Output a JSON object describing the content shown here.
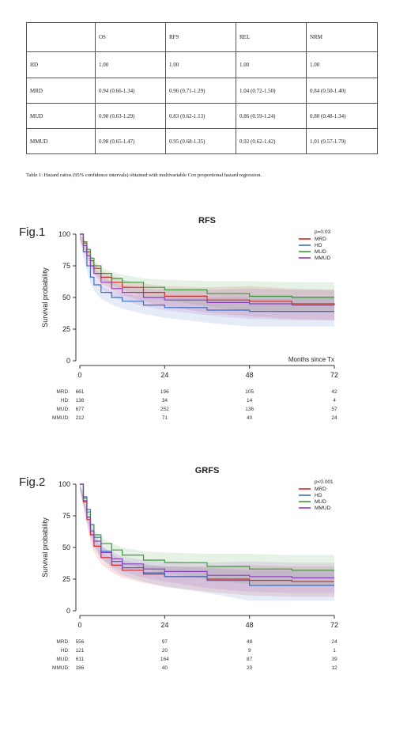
{
  "table": {
    "header": [
      "",
      "OS",
      "RFS",
      "REL",
      "NRM"
    ],
    "rows": [
      [
        "HD",
        "1.00",
        "1.00",
        "1.00",
        "1.00"
      ],
      [
        "MRD",
        "0.94 (0.66-1.34)",
        "0.96 (0.71-1.29)",
        "1.04 (0.72-1.50)",
        "0.84 (0.50-1.40)"
      ],
      [
        "MUD",
        "0.90 (0.63-1.29)",
        "0.83 (0.62-1.13)",
        "0.86 (0.59-1.24)",
        "0.80 (0.48-1.34)"
      ],
      [
        "MMUD",
        "0.98 (0.65-1.47)",
        "0.95 (0.68-1.35)",
        "0.92 (0.62-1.42)",
        "1.01 (0.57-1.79)"
      ]
    ],
    "caption": "Table 1: Hazard ratios (95% confidence intervals) obtained with multivariable Cox proportional hazard regression."
  },
  "colors": {
    "MRD": "#d62728",
    "HD": "#3a6fc4",
    "MUD": "#3a9a3a",
    "MMUD": "#8a3fbf"
  },
  "chart_data": [
    {
      "type": "line",
      "fig_label": "Fig.1",
      "title": "RFS",
      "ylabel": "Survival probability",
      "xlabel": "Months since Tx",
      "xlim": [
        0,
        72
      ],
      "ylim": [
        0,
        100
      ],
      "xticks": [
        "0",
        "24",
        "48",
        "72"
      ],
      "yticks": [
        "0",
        "25",
        "50",
        "75",
        "100"
      ],
      "pvalue": "p=0.03",
      "legend": [
        "MRD",
        "HD",
        "MUD",
        "MMUD"
      ],
      "series": [
        {
          "name": "MRD",
          "x": [
            0,
            1,
            2,
            3,
            4,
            6,
            9,
            12,
            18,
            24,
            36,
            48,
            60,
            72
          ],
          "y": [
            100,
            93,
            86,
            79,
            73,
            66,
            62,
            58,
            54,
            51,
            48,
            47,
            45,
            44
          ]
        },
        {
          "name": "HD",
          "x": [
            0,
            1,
            2,
            3,
            4,
            6,
            9,
            12,
            18,
            24,
            36,
            48,
            60,
            72
          ],
          "y": [
            100,
            86,
            75,
            66,
            60,
            54,
            50,
            47,
            44,
            42,
            40,
            39,
            39,
            39
          ]
        },
        {
          "name": "MUD",
          "x": [
            0,
            1,
            2,
            3,
            4,
            6,
            9,
            12,
            18,
            24,
            36,
            48,
            60,
            72
          ],
          "y": [
            100,
            94,
            88,
            81,
            75,
            69,
            65,
            62,
            58,
            56,
            53,
            51,
            50,
            50
          ]
        },
        {
          "name": "MMUD",
          "x": [
            0,
            1,
            2,
            3,
            4,
            6,
            9,
            12,
            18,
            24,
            36,
            48,
            60,
            72
          ],
          "y": [
            100,
            91,
            83,
            75,
            69,
            62,
            57,
            54,
            50,
            48,
            46,
            45,
            44,
            44
          ]
        }
      ],
      "risk_table": {
        "times": [
          0,
          24,
          48,
          72
        ],
        "rows": [
          {
            "label": "MRD:",
            "values": [
              "661",
              "196",
              "105",
              "42"
            ]
          },
          {
            "label": "HD:",
            "values": [
              "136",
              "34",
              "14",
              "4"
            ]
          },
          {
            "label": "MUD:",
            "values": [
              "677",
              "252",
              "136",
              "57"
            ]
          },
          {
            "label": "MMUD:",
            "values": [
              "212",
              "71",
              "40",
              "24"
            ]
          }
        ]
      }
    },
    {
      "type": "line",
      "fig_label": "Fig.2",
      "title": "GRFS",
      "ylabel": "Survival probability",
      "xlabel": "",
      "xlim": [
        0,
        72
      ],
      "ylim": [
        0,
        100
      ],
      "xticks": [
        "0",
        "24",
        "48",
        "72"
      ],
      "yticks": [
        "0",
        "25",
        "50",
        "75",
        "100"
      ],
      "pvalue": "p<0.001",
      "legend": [
        "MRD",
        "HD",
        "MUD",
        "MMUD"
      ],
      "series": [
        {
          "name": "MRD",
          "x": [
            0,
            1,
            2,
            3,
            4,
            6,
            9,
            12,
            18,
            24,
            36,
            48,
            60,
            72
          ],
          "y": [
            100,
            86,
            72,
            60,
            51,
            42,
            36,
            32,
            29,
            27,
            25,
            24,
            23,
            23
          ]
        },
        {
          "name": "HD",
          "x": [
            0,
            1,
            2,
            3,
            4,
            6,
            9,
            12,
            18,
            24,
            36,
            48,
            60,
            72
          ],
          "y": [
            100,
            90,
            80,
            68,
            58,
            47,
            39,
            34,
            30,
            27,
            24,
            20,
            20,
            20
          ]
        },
        {
          "name": "MUD",
          "x": [
            0,
            1,
            2,
            3,
            4,
            6,
            9,
            12,
            18,
            24,
            36,
            48,
            60,
            72
          ],
          "y": [
            100,
            89,
            78,
            68,
            60,
            53,
            48,
            44,
            40,
            38,
            35,
            33,
            32,
            32
          ]
        },
        {
          "name": "MMUD",
          "x": [
            0,
            1,
            2,
            3,
            4,
            6,
            9,
            12,
            18,
            24,
            36,
            48,
            60,
            72
          ],
          "y": [
            100,
            87,
            74,
            63,
            55,
            46,
            41,
            37,
            33,
            31,
            28,
            27,
            26,
            26
          ]
        }
      ],
      "risk_table": {
        "times": [
          0,
          24,
          48,
          72
        ],
        "rows": [
          {
            "label": "MRD:",
            "values": [
              "556",
              "97",
              "48",
              "24"
            ]
          },
          {
            "label": "HD:",
            "values": [
              "121",
              "20",
              "9",
              "1"
            ]
          },
          {
            "label": "MUD:",
            "values": [
              "611",
              "164",
              "87",
              "39"
            ]
          },
          {
            "label": "MMUD:",
            "values": [
              "186",
              "40",
              "20",
              "12"
            ]
          }
        ]
      }
    }
  ]
}
